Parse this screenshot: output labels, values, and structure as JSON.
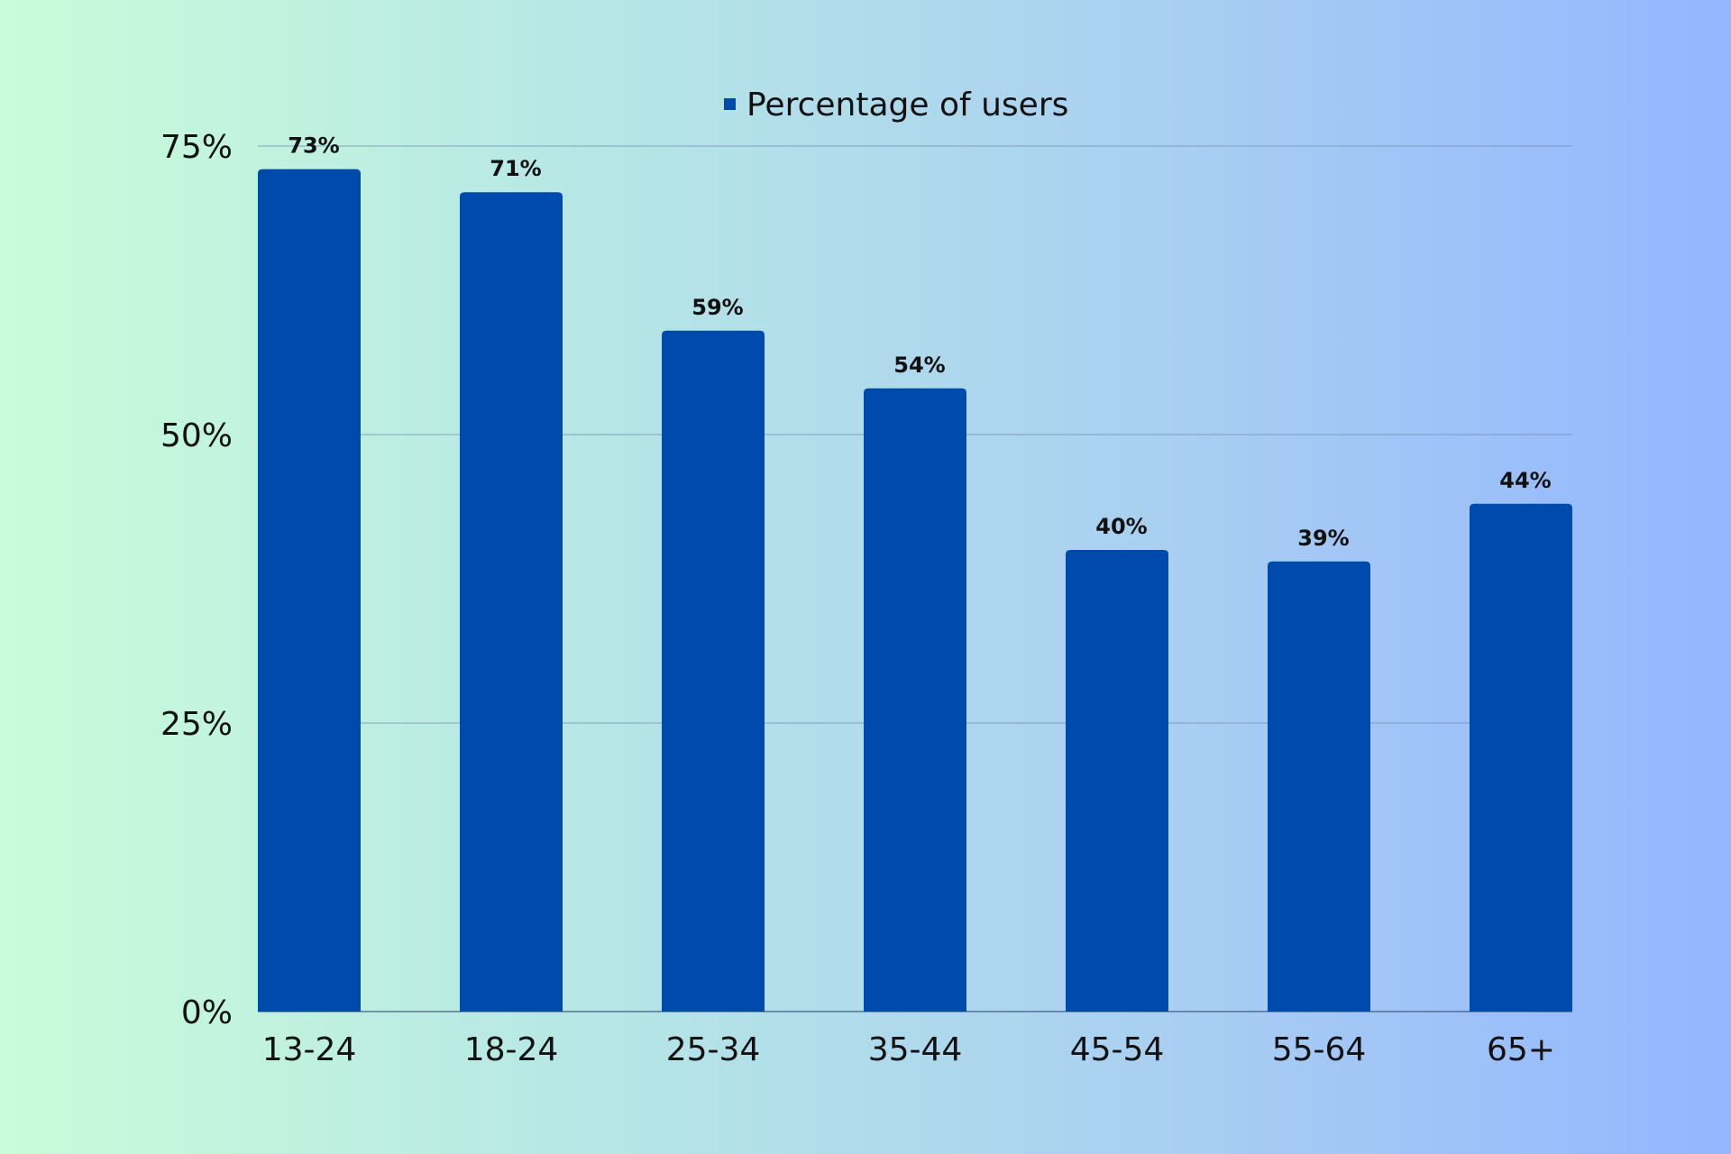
{
  "chart_data": {
    "type": "bar",
    "categories": [
      "13-24",
      "18-24",
      "25-34",
      "35-44",
      "45-54",
      "55-64",
      "65+"
    ],
    "series": [
      {
        "name": "Percentage of users",
        "values": [
          73,
          71,
          59,
          54,
          40,
          39,
          44
        ],
        "color": "#0049ad"
      }
    ],
    "data_labels": [
      "73%",
      "71%",
      "59%",
      "54%",
      "40%",
      "39%",
      "44%"
    ],
    "y_ticks": [
      0,
      25,
      50,
      75
    ],
    "y_tick_labels": [
      "0%",
      "25%",
      "50%",
      "75%"
    ],
    "ylim": [
      0,
      75
    ],
    "grid": true,
    "legend": "top-center"
  }
}
